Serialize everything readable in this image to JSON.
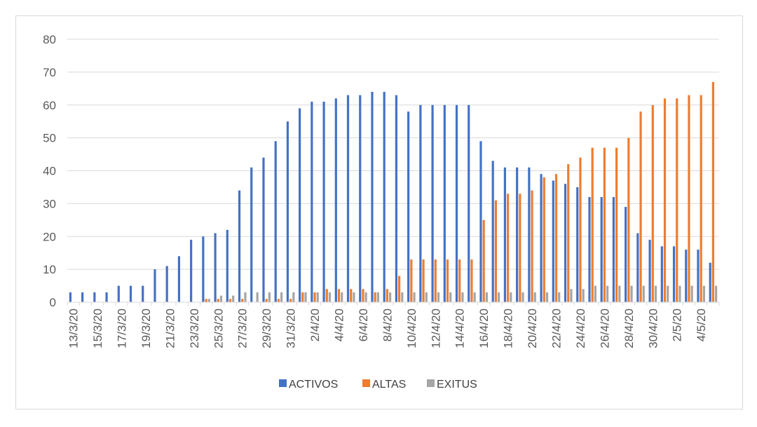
{
  "chart_data": {
    "type": "bar",
    "title": "",
    "xlabel": "",
    "ylabel": "",
    "ylim": [
      0,
      80
    ],
    "yticks": [
      0,
      10,
      20,
      30,
      40,
      50,
      60,
      70,
      80
    ],
    "grid": true,
    "legend": "bottom",
    "categories": [
      "13/3/20",
      "14/3/20",
      "15/3/20",
      "16/3/20",
      "17/3/20",
      "18/3/20",
      "19/3/20",
      "20/3/20",
      "21/3/20",
      "22/3/20",
      "23/3/20",
      "24/3/20",
      "25/3/20",
      "26/3/20",
      "27/3/20",
      "28/3/20",
      "29/3/20",
      "30/3/20",
      "31/3/20",
      "1/4/20",
      "2/4/20",
      "3/4/20",
      "4/4/20",
      "5/4/20",
      "6/4/20",
      "7/4/20",
      "8/4/20",
      "9/4/20",
      "10/4/20",
      "11/4/20",
      "12/4/20",
      "13/4/20",
      "14/4/20",
      "15/4/20",
      "16/4/20",
      "17/4/20",
      "18/4/20",
      "19/4/20",
      "20/4/20",
      "21/4/20",
      "22/4/20",
      "23/4/20",
      "24/4/20",
      "25/4/20",
      "26/4/20",
      "27/4/20",
      "28/4/20",
      "29/4/20",
      "30/4/20",
      "1/5/20",
      "2/5/20",
      "3/5/20",
      "4/5/20",
      "5/5/20"
    ],
    "tick_labels": [
      "13/3/20",
      "15/3/20",
      "17/3/20",
      "19/3/20",
      "21/3/20",
      "23/3/20",
      "25/3/20",
      "27/3/20",
      "29/3/20",
      "31/3/20",
      "2/4/20",
      "4/4/20",
      "6/4/20",
      "8/4/20",
      "10/4/20",
      "12/4/20",
      "14/4/20",
      "16/4/20",
      "18/4/20",
      "20/4/20",
      "22/4/20",
      "24/4/20",
      "26/4/20",
      "28/4/20",
      "30/4/20",
      "2/5/20",
      "4/5/20"
    ],
    "series": [
      {
        "name": "ACTIVOS",
        "color": "#4472c4",
        "values": [
          3,
          3,
          3,
          3,
          5,
          5,
          5,
          10,
          11,
          14,
          19,
          20,
          21,
          22,
          34,
          41,
          44,
          49,
          55,
          59,
          61,
          61,
          62,
          63,
          63,
          64,
          64,
          63,
          58,
          60,
          60,
          60,
          60,
          60,
          49,
          43,
          41,
          41,
          41,
          39,
          37,
          36,
          35,
          32,
          32,
          32,
          29,
          21,
          19,
          17,
          17,
          16,
          16,
          12
        ]
      },
      {
        "name": "ALTAS",
        "color": "#ed7d31",
        "values": [
          0,
          0,
          0,
          0,
          0,
          0,
          0,
          0,
          0,
          0,
          0,
          1,
          1,
          1,
          1,
          0,
          1,
          1,
          1,
          3,
          3,
          4,
          4,
          4,
          4,
          3,
          4,
          8,
          13,
          13,
          13,
          13,
          13,
          13,
          25,
          31,
          33,
          33,
          34,
          38,
          39,
          42,
          44,
          47,
          47,
          47,
          50,
          58,
          60,
          62,
          62,
          63,
          63,
          67
        ]
      },
      {
        "name": "EXITUS",
        "color": "#a5a5a5",
        "values": [
          0,
          0,
          0,
          0,
          0,
          0,
          0,
          0,
          0,
          0,
          0,
          1,
          2,
          2,
          3,
          3,
          3,
          3,
          3,
          3,
          3,
          3,
          3,
          3,
          3,
          3,
          3,
          3,
          3,
          3,
          3,
          3,
          3,
          3,
          3,
          3,
          3,
          3,
          3,
          3,
          3,
          4,
          4,
          5,
          5,
          5,
          5,
          5,
          5,
          5,
          5,
          5,
          5,
          5
        ]
      }
    ]
  }
}
